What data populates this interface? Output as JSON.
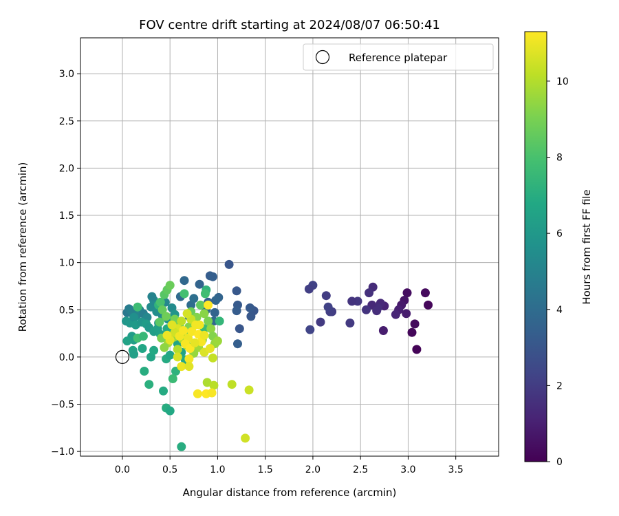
{
  "chart_data": {
    "type": "scatter",
    "title": "FOV centre drift starting at 2024/08/07 06:50:41",
    "xlabel": "Angular distance from reference (arcmin)",
    "ylabel": "Rotation from reference (arcmin)",
    "xlim": [
      -0.44,
      3.95
    ],
    "ylim": [
      -1.05,
      3.38
    ],
    "xticks": [
      0.0,
      0.5,
      1.0,
      1.5,
      2.0,
      2.5,
      3.0,
      3.5
    ],
    "xtick_labels": [
      "0.0",
      "0.5",
      "1.0",
      "1.5",
      "2.0",
      "2.5",
      "3.0",
      "3.5"
    ],
    "yticks": [
      -1.0,
      -0.5,
      0.0,
      0.5,
      1.0,
      1.5,
      2.0,
      2.5,
      3.0
    ],
    "ytick_labels": [
      "−1.0",
      "−0.5",
      "0.0",
      "0.5",
      "1.0",
      "1.5",
      "2.0",
      "2.5",
      "3.0"
    ],
    "grid": true,
    "legend": {
      "position": "top-right",
      "entries": [
        "Reference platepar"
      ]
    },
    "reference_point": {
      "x": 0.0,
      "y": 0.0,
      "label": "Reference platepar"
    },
    "colorbar": {
      "label": "Hours from first FF file",
      "cmap": "viridis",
      "range": [
        0,
        11.3
      ],
      "ticks": [
        0,
        2,
        4,
        6,
        8,
        10
      ],
      "tick_labels": [
        "0",
        "2",
        "4",
        "6",
        "8",
        "10"
      ]
    },
    "series": [
      {
        "points": [
          {
            "x": 2.99,
            "y": 0.68,
            "c": 0.4
          },
          {
            "x": 3.18,
            "y": 0.68,
            "c": 0.3
          },
          {
            "x": 3.21,
            "y": 0.55,
            "c": 0.2
          },
          {
            "x": 3.07,
            "y": 0.35,
            "c": 0.3
          },
          {
            "x": 3.04,
            "y": 0.26,
            "c": 0.2
          },
          {
            "x": 3.09,
            "y": 0.08,
            "c": 0.1
          },
          {
            "x": 2.96,
            "y": 0.6,
            "c": 0.6
          },
          {
            "x": 2.93,
            "y": 0.55,
            "c": 0.8
          },
          {
            "x": 2.98,
            "y": 0.46,
            "c": 0.9
          },
          {
            "x": 2.9,
            "y": 0.5,
            "c": 1.0
          },
          {
            "x": 2.87,
            "y": 0.45,
            "c": 1.2
          },
          {
            "x": 2.74,
            "y": 0.28,
            "c": 0.9
          },
          {
            "x": 2.75,
            "y": 0.54,
            "c": 1.1
          },
          {
            "x": 2.71,
            "y": 0.57,
            "c": 1.3
          },
          {
            "x": 2.68,
            "y": 0.52,
            "c": 1.5
          },
          {
            "x": 2.63,
            "y": 0.74,
            "c": 1.4
          },
          {
            "x": 2.62,
            "y": 0.55,
            "c": 1.3
          },
          {
            "x": 2.59,
            "y": 0.68,
            "c": 1.6
          },
          {
            "x": 2.56,
            "y": 0.5,
            "c": 1.7
          },
          {
            "x": 2.67,
            "y": 0.49,
            "c": 1.5
          },
          {
            "x": 2.47,
            "y": 0.59,
            "c": 1.8
          },
          {
            "x": 2.41,
            "y": 0.59,
            "c": 1.7
          },
          {
            "x": 2.39,
            "y": 0.36,
            "c": 1.9
          },
          {
            "x": 2.2,
            "y": 0.48,
            "c": 2.0
          },
          {
            "x": 2.18,
            "y": 0.48,
            "c": 2.1
          },
          {
            "x": 2.16,
            "y": 0.53,
            "c": 2.2
          },
          {
            "x": 2.14,
            "y": 0.65,
            "c": 2.0
          },
          {
            "x": 2.08,
            "y": 0.37,
            "c": 1.9
          },
          {
            "x": 2.0,
            "y": 0.76,
            "c": 2.2
          },
          {
            "x": 1.96,
            "y": 0.72,
            "c": 2.1
          },
          {
            "x": 1.97,
            "y": 0.29,
            "c": 2.3
          },
          {
            "x": 1.12,
            "y": 0.98,
            "c": 3.0
          },
          {
            "x": 1.38,
            "y": 0.49,
            "c": 3.0
          },
          {
            "x": 1.34,
            "y": 0.52,
            "c": 3.2
          },
          {
            "x": 1.35,
            "y": 0.43,
            "c": 3.1
          },
          {
            "x": 1.2,
            "y": 0.7,
            "c": 3.1
          },
          {
            "x": 1.23,
            "y": 0.3,
            "c": 3.0
          },
          {
            "x": 1.21,
            "y": 0.55,
            "c": 3.2
          },
          {
            "x": 1.2,
            "y": 0.49,
            "c": 3.3
          },
          {
            "x": 1.21,
            "y": 0.14,
            "c": 3.4
          },
          {
            "x": 0.92,
            "y": 0.86,
            "c": 3.3
          },
          {
            "x": 0.95,
            "y": 0.85,
            "c": 3.4
          },
          {
            "x": 0.81,
            "y": 0.77,
            "c": 3.6
          },
          {
            "x": 0.65,
            "y": 0.81,
            "c": 3.8
          },
          {
            "x": 0.61,
            "y": 0.64,
            "c": 3.9
          },
          {
            "x": 1.01,
            "y": 0.63,
            "c": 3.6
          },
          {
            "x": 0.98,
            "y": 0.6,
            "c": 3.7
          },
          {
            "x": 0.9,
            "y": 0.58,
            "c": 3.5
          },
          {
            "x": 0.97,
            "y": 0.47,
            "c": 3.6
          },
          {
            "x": 0.96,
            "y": 0.38,
            "c": 3.8
          },
          {
            "x": 0.88,
            "y": 0.5,
            "c": 3.9
          },
          {
            "x": 0.72,
            "y": 0.55,
            "c": 4.0
          },
          {
            "x": 0.75,
            "y": 0.62,
            "c": 4.1
          },
          {
            "x": 0.7,
            "y": 0.43,
            "c": 4.2
          },
          {
            "x": 0.05,
            "y": 0.47,
            "c": 4.5
          },
          {
            "x": 0.07,
            "y": 0.51,
            "c": 4.7
          },
          {
            "x": 0.1,
            "y": 0.48,
            "c": 4.9
          },
          {
            "x": 0.15,
            "y": 0.44,
            "c": 5.0
          },
          {
            "x": 0.18,
            "y": 0.5,
            "c": 5.1
          },
          {
            "x": 0.22,
            "y": 0.46,
            "c": 4.8
          },
          {
            "x": 0.26,
            "y": 0.42,
            "c": 5.2
          },
          {
            "x": 0.3,
            "y": 0.53,
            "c": 5.4
          },
          {
            "x": 0.33,
            "y": 0.6,
            "c": 5.3
          },
          {
            "x": 0.31,
            "y": 0.64,
            "c": 5.0
          },
          {
            "x": 0.36,
            "y": 0.48,
            "c": 5.5
          },
          {
            "x": 0.38,
            "y": 0.36,
            "c": 5.6
          },
          {
            "x": 0.42,
            "y": 0.44,
            "c": 5.3
          },
          {
            "x": 0.45,
            "y": 0.58,
            "c": 5.2
          },
          {
            "x": 0.48,
            "y": 0.4,
            "c": 5.7
          },
          {
            "x": 0.52,
            "y": 0.52,
            "c": 5.4
          },
          {
            "x": 0.55,
            "y": 0.45,
            "c": 5.8
          },
          {
            "x": 0.04,
            "y": 0.38,
            "c": 5.9
          },
          {
            "x": 0.08,
            "y": 0.36,
            "c": 6.0
          },
          {
            "x": 0.12,
            "y": 0.42,
            "c": 5.6
          },
          {
            "x": 0.14,
            "y": 0.34,
            "c": 6.1
          },
          {
            "x": 0.2,
            "y": 0.37,
            "c": 5.9
          },
          {
            "x": 0.25,
            "y": 0.35,
            "c": 6.2
          },
          {
            "x": 0.28,
            "y": 0.31,
            "c": 6.0
          },
          {
            "x": 0.33,
            "y": 0.27,
            "c": 6.3
          },
          {
            "x": 0.37,
            "y": 0.3,
            "c": 6.4
          },
          {
            "x": 0.4,
            "y": 0.24,
            "c": 6.5
          },
          {
            "x": 0.1,
            "y": 0.22,
            "c": 6.2
          },
          {
            "x": 0.12,
            "y": 0.18,
            "c": 6.3
          },
          {
            "x": 0.05,
            "y": 0.17,
            "c": 6.5
          },
          {
            "x": 0.11,
            "y": 0.07,
            "c": 6.6
          },
          {
            "x": 0.12,
            "y": 0.03,
            "c": 6.4
          },
          {
            "x": 0.21,
            "y": 0.09,
            "c": 6.7
          },
          {
            "x": 0.3,
            "y": 0.0,
            "c": 6.6
          },
          {
            "x": 0.33,
            "y": 0.07,
            "c": 6.8
          },
          {
            "x": 0.46,
            "y": -0.02,
            "c": 6.9
          },
          {
            "x": 0.5,
            "y": 0.02,
            "c": 6.7
          },
          {
            "x": 0.62,
            "y": 0.05,
            "c": 6.5
          },
          {
            "x": 0.58,
            "y": 0.14,
            "c": 6.6
          },
          {
            "x": 0.66,
            "y": -0.03,
            "c": 6.8
          },
          {
            "x": 0.47,
            "y": 0.3,
            "c": 6.9
          },
          {
            "x": 0.51,
            "y": 0.26,
            "c": 7.0
          },
          {
            "x": 0.23,
            "y": -0.15,
            "c": 7.0
          },
          {
            "x": 0.28,
            "y": -0.29,
            "c": 7.1
          },
          {
            "x": 0.43,
            "y": -0.36,
            "c": 6.9
          },
          {
            "x": 0.46,
            "y": -0.54,
            "c": 7.0
          },
          {
            "x": 0.5,
            "y": -0.57,
            "c": 6.8
          },
          {
            "x": 0.62,
            "y": -0.95,
            "c": 7.0
          },
          {
            "x": 0.56,
            "y": -0.15,
            "c": 7.2
          },
          {
            "x": 0.53,
            "y": -0.23,
            "c": 7.6
          },
          {
            "x": 0.16,
            "y": 0.2,
            "c": 7.8
          },
          {
            "x": 0.22,
            "y": 0.22,
            "c": 7.5
          },
          {
            "x": 0.88,
            "y": 0.71,
            "c": 7.3
          },
          {
            "x": 0.87,
            "y": 0.67,
            "c": 7.8
          },
          {
            "x": 1.02,
            "y": 0.38,
            "c": 7.4
          },
          {
            "x": 0.65,
            "y": 0.67,
            "c": 7.9
          },
          {
            "x": 0.38,
            "y": 0.55,
            "c": 7.3
          },
          {
            "x": 0.16,
            "y": 0.53,
            "c": 7.7
          },
          {
            "x": 0.86,
            "y": 0.3,
            "c": 7.6
          },
          {
            "x": 0.4,
            "y": 0.58,
            "c": 8.0
          },
          {
            "x": 0.44,
            "y": 0.66,
            "c": 8.3
          },
          {
            "x": 0.47,
            "y": 0.71,
            "c": 8.5
          },
          {
            "x": 0.5,
            "y": 0.76,
            "c": 8.7
          },
          {
            "x": 0.42,
            "y": 0.5,
            "c": 8.6
          },
          {
            "x": 0.46,
            "y": 0.43,
            "c": 8.8
          },
          {
            "x": 0.39,
            "y": 0.37,
            "c": 8.4
          },
          {
            "x": 0.55,
            "y": 0.4,
            "c": 8.9
          },
          {
            "x": 0.6,
            "y": 0.33,
            "c": 9.0
          },
          {
            "x": 0.65,
            "y": 0.26,
            "c": 8.8
          },
          {
            "x": 0.7,
            "y": 0.32,
            "c": 9.1
          },
          {
            "x": 0.72,
            "y": 0.48,
            "c": 8.7
          },
          {
            "x": 0.78,
            "y": 0.42,
            "c": 9.2
          },
          {
            "x": 0.82,
            "y": 0.55,
            "c": 8.5
          },
          {
            "x": 0.86,
            "y": 0.46,
            "c": 9.3
          },
          {
            "x": 0.9,
            "y": 0.38,
            "c": 9.0
          },
          {
            "x": 0.93,
            "y": 0.3,
            "c": 9.4
          },
          {
            "x": 0.95,
            "y": 0.22,
            "c": 9.2
          },
          {
            "x": 0.97,
            "y": 0.14,
            "c": 9.5
          },
          {
            "x": 1.0,
            "y": 0.17,
            "c": 9.6
          },
          {
            "x": 0.84,
            "y": 0.18,
            "c": 9.3
          },
          {
            "x": 0.8,
            "y": 0.1,
            "c": 9.7
          },
          {
            "x": 0.75,
            "y": 0.04,
            "c": 9.5
          },
          {
            "x": 0.68,
            "y": 0.12,
            "c": 9.8
          },
          {
            "x": 0.63,
            "y": 0.19,
            "c": 9.9
          },
          {
            "x": 0.58,
            "y": 0.08,
            "c": 10.0
          },
          {
            "x": 0.54,
            "y": 0.21,
            "c": 9.6
          },
          {
            "x": 0.48,
            "y": 0.15,
            "c": 9.8
          },
          {
            "x": 0.44,
            "y": 0.1,
            "c": 9.4
          },
          {
            "x": 0.41,
            "y": 0.2,
            "c": 9.1
          },
          {
            "x": 0.89,
            "y": -0.27,
            "c": 9.9
          },
          {
            "x": 0.96,
            "y": -0.3,
            "c": 10.1
          },
          {
            "x": 1.15,
            "y": -0.29,
            "c": 10.2
          },
          {
            "x": 1.33,
            "y": -0.35,
            "c": 10.4
          },
          {
            "x": 1.29,
            "y": -0.86,
            "c": 10.5
          },
          {
            "x": 0.95,
            "y": -0.01,
            "c": 10.3
          },
          {
            "x": 0.72,
            "y": 0.4,
            "c": 10.4
          },
          {
            "x": 0.68,
            "y": 0.46,
            "c": 10.6
          },
          {
            "x": 0.62,
            "y": 0.38,
            "c": 10.2
          },
          {
            "x": 0.58,
            "y": 0.3,
            "c": 10.7
          },
          {
            "x": 0.55,
            "y": 0.26,
            "c": 10.5
          },
          {
            "x": 0.52,
            "y": 0.34,
            "c": 10.8
          },
          {
            "x": 0.5,
            "y": 0.18,
            "c": 10.9
          },
          {
            "x": 0.47,
            "y": 0.23,
            "c": 11.0
          },
          {
            "x": 0.6,
            "y": 0.22,
            "c": 11.1
          },
          {
            "x": 0.64,
            "y": 0.28,
            "c": 11.2
          },
          {
            "x": 0.69,
            "y": 0.2,
            "c": 11.0
          },
          {
            "x": 0.73,
            "y": 0.27,
            "c": 11.2
          },
          {
            "x": 0.77,
            "y": 0.34,
            "c": 11.1
          },
          {
            "x": 0.8,
            "y": 0.24,
            "c": 11.3
          },
          {
            "x": 0.83,
            "y": 0.16,
            "c": 11.2
          },
          {
            "x": 0.86,
            "y": 0.23,
            "c": 11.0
          },
          {
            "x": 0.9,
            "y": 0.55,
            "c": 11.3
          },
          {
            "x": 0.81,
            "y": 0.34,
            "c": 11.1
          },
          {
            "x": 0.66,
            "y": 0.14,
            "c": 11.2
          },
          {
            "x": 0.71,
            "y": 0.09,
            "c": 11.3
          },
          {
            "x": 0.76,
            "y": 0.15,
            "c": 10.9
          },
          {
            "x": 0.62,
            "y": -0.1,
            "c": 11.0
          },
          {
            "x": 0.7,
            "y": -0.02,
            "c": 11.1
          },
          {
            "x": 0.79,
            "y": -0.39,
            "c": 11.2
          },
          {
            "x": 0.88,
            "y": -0.39,
            "c": 11.3
          },
          {
            "x": 0.94,
            "y": -0.38,
            "c": 11.2
          },
          {
            "x": 0.7,
            "y": -0.1,
            "c": 10.8
          },
          {
            "x": 0.58,
            "y": 0.0,
            "c": 10.6
          },
          {
            "x": 0.86,
            "y": 0.05,
            "c": 10.7
          },
          {
            "x": 0.92,
            "y": 0.09,
            "c": 10.9
          }
        ]
      }
    ]
  }
}
